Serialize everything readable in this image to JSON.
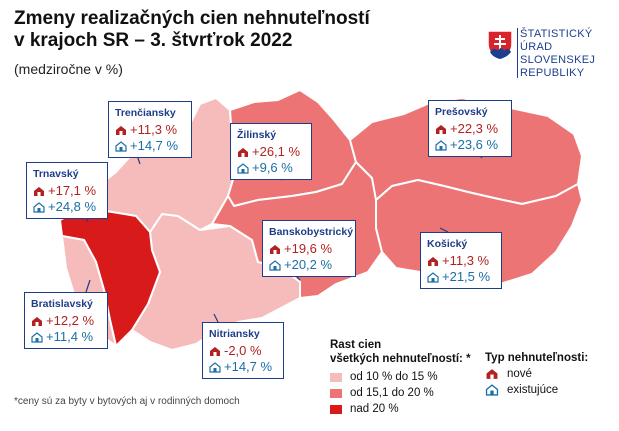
{
  "title_line1": "Zmeny realizačných cien nehnuteľností",
  "title_line2": "v krajoch SR – 3. štvrťrok 2022",
  "subtitle": "(medziročne v %)",
  "logo": {
    "lines": [
      "ŠTATISTICKÝ",
      "ÚRAD",
      "SLOVENSKEJ",
      "REPUBLIKY"
    ],
    "icon": "slovak-coat-of-arms-icon"
  },
  "colors": {
    "band_low": "#f6bcbc",
    "band_mid": "#ec7474",
    "band_high": "#d81a1a",
    "new_value": "#b22222",
    "existing_value": "#1a6fa5",
    "callout_border": "#1f3c88"
  },
  "regions": {
    "trnavsky": {
      "name": "Trnavský",
      "new": "+17,1 %",
      "existing": "+24,8 %"
    },
    "trenciansky": {
      "name": "Trenčiansky",
      "new": "+11,3 %",
      "existing": "+14,7 %"
    },
    "zilinsky": {
      "name": "Žilinský",
      "new": "+26,1 %",
      "existing": "+9,6 %"
    },
    "presovsky": {
      "name": "Prešovský",
      "new": "+22,3 %",
      "existing": "+23,6 %"
    },
    "banskobystricky": {
      "name": "Banskobystrický",
      "new": "+19,6 %",
      "existing": "+20,2 %"
    },
    "kosicky": {
      "name": "Košický",
      "new": "+11,3 %",
      "existing": "+21,5 %"
    },
    "bratislavsky": {
      "name": "Bratislavský",
      "new": "+12,2 %",
      "existing": "+11,4 %"
    },
    "nitriansky": {
      "name": "Nitriansky",
      "new": "-2,0 %",
      "existing": "+14,7 %"
    }
  },
  "legend_ranges": {
    "title_line1": "Rast cien",
    "title_line2": "všetkých nehnuteľností: *",
    "items": [
      "od 10 % do 15 %",
      "od 15,1 do 20 %",
      "nad 20 %"
    ]
  },
  "legend_types": {
    "title": "Typ nehnuteľnosti:",
    "new_label": "nové",
    "existing_label": "existujúce",
    "new_icon": "house-new-icon",
    "existing_icon": "house-existing-icon"
  },
  "footnote": "*ceny sú za byty v bytových aj v rodinných domoch"
}
